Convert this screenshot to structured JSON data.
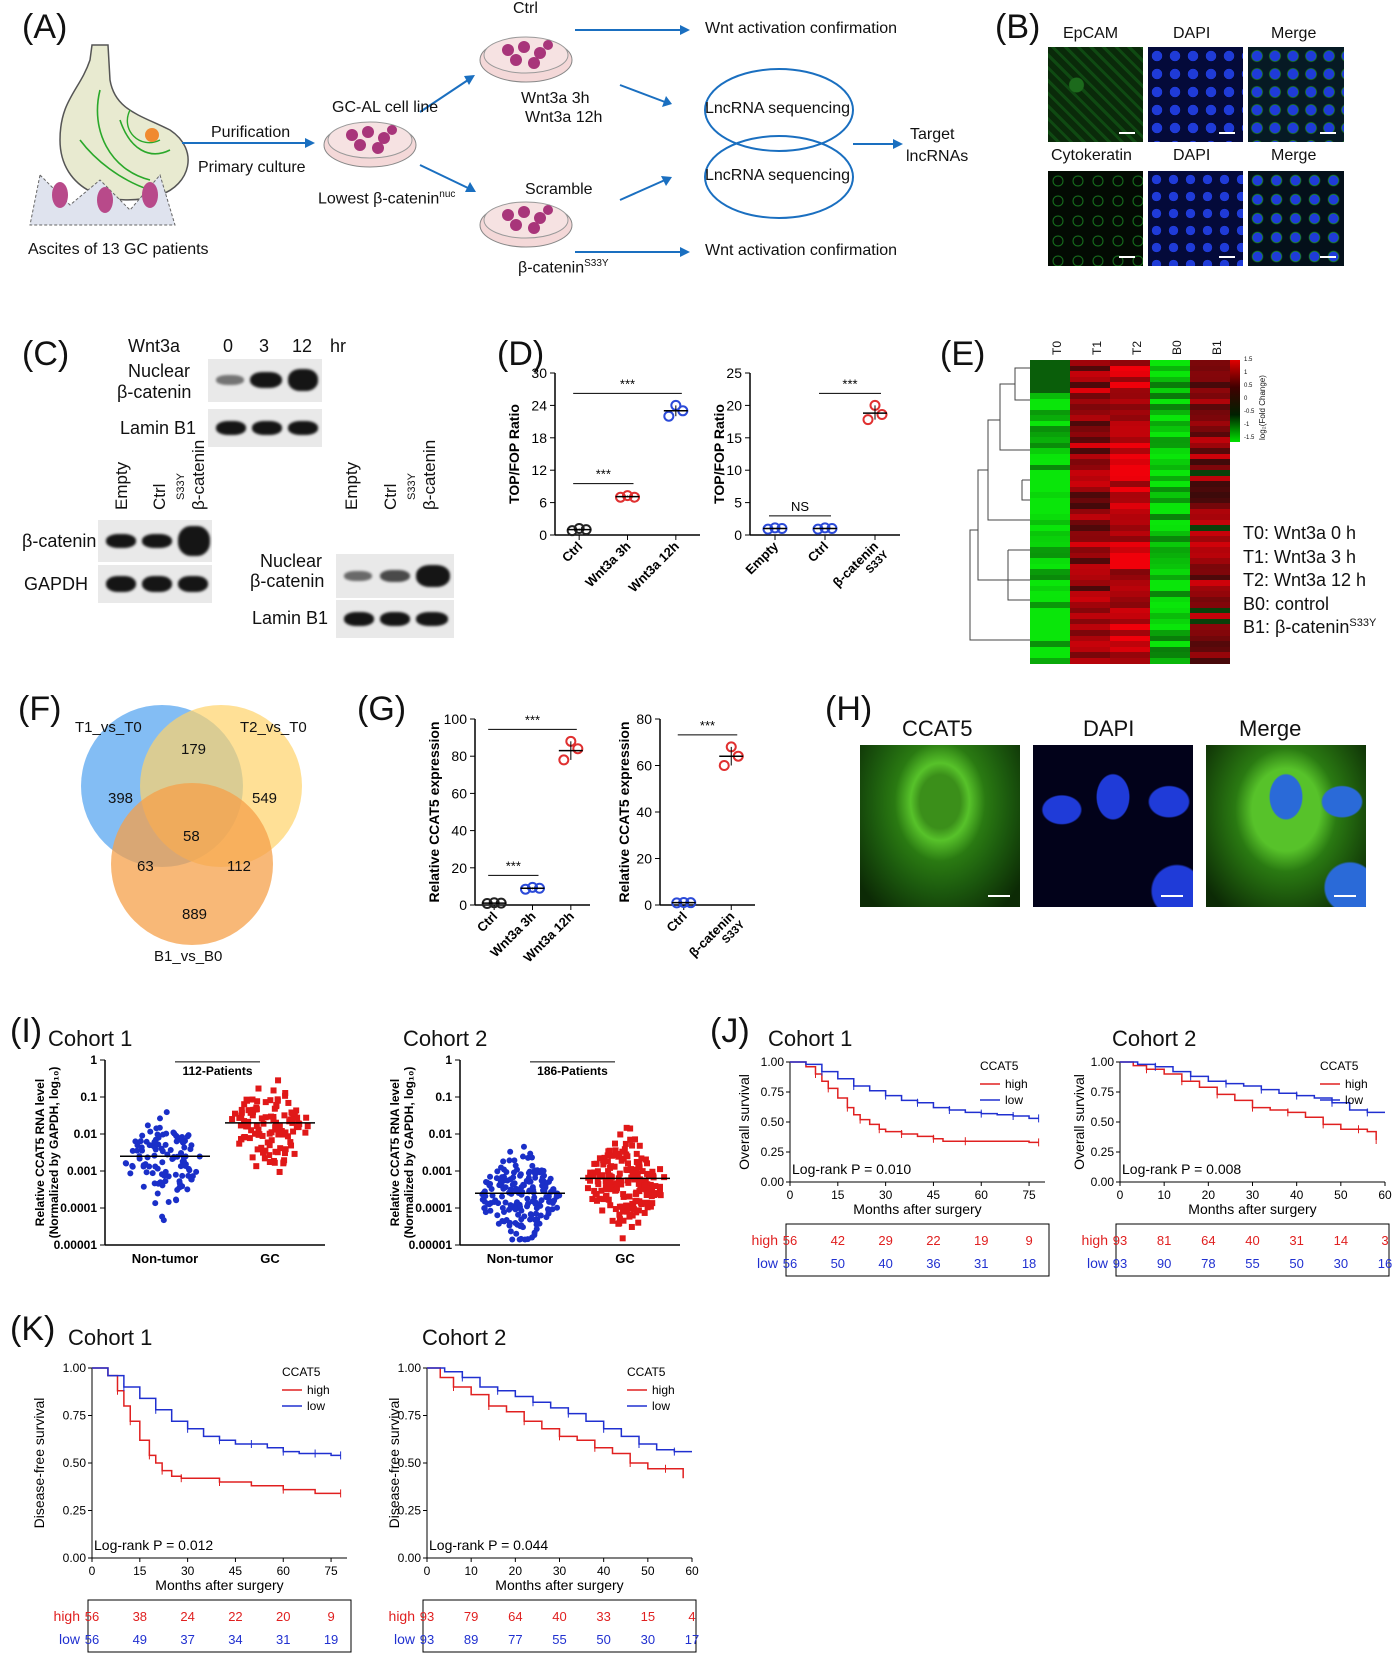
{
  "panels": {
    "A": {
      "label": "(A)",
      "ascites": "Ascites of 13 GC patients",
      "purification": "Purification",
      "primary_culture": "Primary culture",
      "cell_line": "GC-AL cell line",
      "lowest": "Lowest β-catenin",
      "lowest_sup": "nuc",
      "ctrl": "Ctrl",
      "wnt3h": "Wnt3a 3h",
      "wnt12h": "Wnt3a 12h",
      "scramble": "Scramble",
      "bcat_mut": "β-catenin",
      "bcat_mut_sup": "S33Y",
      "wnt_confirm_top": "Wnt activation confirmation",
      "wnt_confirm_bottom": "Wnt activation confirmation",
      "lnc_seq_1": "LncRNA sequencing",
      "lnc_seq_2": "LncRNA sequencing",
      "target_1": "Target",
      "target_2": "lncRNAs"
    },
    "B": {
      "label": "(B)",
      "row1": [
        "EpCAM",
        "DAPI",
        "Merge"
      ],
      "row2": [
        "Cytokeratin",
        "DAPI",
        "Merge"
      ]
    },
    "C": {
      "label": "(C)",
      "wnt3a": "Wnt3a",
      "times": [
        "0",
        "3",
        "12"
      ],
      "hr": "hr",
      "nuclear_bcat_1": "Nuclear",
      "nuclear_bcat_2": "β-catenin",
      "lamin": "Lamin B1",
      "lanes_left": [
        "Empty",
        "Ctrl",
        "β-catenin"
      ],
      "lanes_right": [
        "Empty",
        "Ctrl",
        "β-catenin"
      ],
      "s33y": "S33Y",
      "bcat": "β-catenin",
      "gapdh": "GAPDH",
      "nuclear2_1": "Nuclear",
      "nuclear2_2": "β-catenin",
      "lamin2": "Lamin B1"
    },
    "D": {
      "label": "(D)",
      "ylabel": "TOP/FOP Ratio"
    },
    "E": {
      "label": "(E)",
      "cols": [
        "T0",
        "T1",
        "T2",
        "B0",
        "B1"
      ],
      "scale_label": "log₂(Fold Change)",
      "scale_ticks": [
        "1.5",
        "1",
        "0.5",
        "0",
        "-0.5",
        "-1",
        "-1.5"
      ],
      "legend": [
        "T0: Wnt3a 0 h",
        "T1: Wnt3a 3 h",
        "T2: Wnt3a 12 h",
        "B0: control",
        "B1: β-catenin"
      ],
      "legend_sup": "S33Y",
      "colors": {
        "up": "#d01010",
        "down": "#20c020"
      }
    },
    "F": {
      "label": "(F)",
      "sets": [
        "T1_vs_T0",
        "T2_vs_T0",
        "B1_vs_B0"
      ],
      "regions": {
        "a_only": "398",
        "ab": "179",
        "b_only": "549",
        "abc": "58",
        "ac": "63",
        "bc": "112",
        "c_only": "889"
      },
      "colors": {
        "a": "#5aa7f0",
        "b": "#ffd36a",
        "c": "#f5a04a"
      }
    },
    "G": {
      "label": "(G)",
      "ylabel": "Relative CCAT5 expression"
    },
    "H": {
      "label": "(H)",
      "cols": [
        "CCAT5",
        "DAPI",
        "Merge"
      ]
    },
    "I": {
      "label": "(I)",
      "cohort1": "Cohort 1",
      "cohort2": "Cohort 2",
      "ylabel_1": "Relative CCAT5 RNA level",
      "ylabel_2": "(Normalized by GAPDH, log₁₀)",
      "sig1": "**",
      "sig2": "***",
      "patients1": "112-Patients",
      "patients2": "186-Patients",
      "xcats": [
        "Non-tumor",
        "GC"
      ],
      "yticks": [
        "1",
        "0.1",
        "0.01",
        "0.001",
        "0.0001",
        "0.00001"
      ]
    },
    "J": {
      "label": "(J)",
      "cohort1": "Cohort 1",
      "cohort2": "Cohort 2",
      "ylabel": "Overall survival",
      "xlabel": "Months after surgery",
      "legend_title": "CCAT5",
      "high": "high",
      "low": "low",
      "p1": "Log-rank P = 0.010",
      "p2": "Log-rank P = 0.008",
      "risk1": {
        "high": [
          "56",
          "42",
          "29",
          "22",
          "19",
          "9"
        ],
        "low": [
          "56",
          "50",
          "40",
          "36",
          "31",
          "18"
        ]
      },
      "risk2": {
        "high": [
          "93",
          "81",
          "64",
          "40",
          "31",
          "14",
          "3"
        ],
        "low": [
          "93",
          "90",
          "78",
          "55",
          "50",
          "30",
          "16"
        ]
      }
    },
    "K": {
      "label": "(K)",
      "cohort1": "Cohort 1",
      "cohort2": "Cohort 2",
      "ylabel": "Disease-free survival",
      "xlabel": "Months after surgery",
      "legend_title": "CCAT5",
      "high": "high",
      "low": "low",
      "p1": "Log-rank P = 0.012",
      "p2": "Log-rank P = 0.044",
      "risk1": {
        "high": [
          "56",
          "38",
          "24",
          "22",
          "20",
          "9"
        ],
        "low": [
          "56",
          "49",
          "37",
          "34",
          "31",
          "19"
        ]
      },
      "risk2": {
        "high": [
          "93",
          "79",
          "64",
          "40",
          "33",
          "15",
          "4"
        ],
        "low": [
          "93",
          "89",
          "77",
          "55",
          "50",
          "30",
          "17"
        ]
      }
    }
  },
  "chart_data": [
    {
      "id": "D-left",
      "type": "scatter",
      "ylabel": "TOP/FOP Ratio",
      "categories": [
        "Ctrl",
        "Wnt3a 3h",
        "Wnt3a 12h"
      ],
      "ylim": [
        0,
        30
      ],
      "yticks": [
        0,
        6,
        12,
        18,
        24,
        30
      ],
      "series": [
        {
          "values": [
            1.0,
            7.1,
            23.0
          ],
          "colors": [
            "#222222",
            "#e03030",
            "#2b4ad8"
          ],
          "points": [
            [
              0.8,
              1.2,
              1.0
            ],
            [
              7.0,
              7.3,
              7.0
            ],
            [
              22.0,
              24.0,
              23.0
            ]
          ]
        }
      ],
      "significance": [
        {
          "from": 0,
          "to": 1,
          "label": "***"
        },
        {
          "from": 0,
          "to": 2,
          "label": "***"
        }
      ]
    },
    {
      "id": "D-right",
      "type": "scatter",
      "ylabel": "TOP/FOP Ratio",
      "categories": [
        "Empty",
        "Ctrl",
        "β-catenin S33Y"
      ],
      "ylim": [
        0,
        25
      ],
      "yticks": [
        0,
        5,
        10,
        15,
        20,
        25
      ],
      "series": [
        {
          "values": [
            1.0,
            1.0,
            18.8
          ],
          "colors": [
            "#2b4ad8",
            "#2b4ad8",
            "#e03030"
          ],
          "points": [
            [
              0.9,
              1.1,
              1.0
            ],
            [
              0.9,
              1.1,
              1.0
            ],
            [
              17.8,
              20.0,
              18.6
            ]
          ]
        }
      ],
      "significance": [
        {
          "from": 0,
          "to": 1,
          "label": "NS"
        },
        {
          "from": 1,
          "to": 2,
          "label": "***"
        }
      ]
    },
    {
      "id": "G-left",
      "type": "scatter",
      "ylabel": "Relative CCAT5 expression",
      "categories": [
        "Ctrl",
        "Wnt3a 3h",
        "Wnt3a 12h"
      ],
      "ylim": [
        0,
        100
      ],
      "yticks": [
        0,
        20,
        40,
        60,
        80,
        100
      ],
      "series": [
        {
          "values": [
            1,
            9,
            83
          ],
          "colors": [
            "#222222",
            "#2b4ad8",
            "#e03030"
          ],
          "points": [
            [
              0.8,
              1.2,
              1.0
            ],
            [
              8.5,
              9.5,
              9.0
            ],
            [
              78,
              88,
              84
            ]
          ]
        }
      ],
      "significance": [
        {
          "from": 0,
          "to": 1,
          "label": "***"
        },
        {
          "from": 0,
          "to": 2,
          "label": "***"
        }
      ]
    },
    {
      "id": "G-right",
      "type": "scatter",
      "ylabel": "Relative CCAT5 expression",
      "categories": [
        "Ctrl",
        "β-catenin S33Y"
      ],
      "ylim": [
        0,
        80
      ],
      "yticks": [
        0,
        20,
        40,
        60,
        80
      ],
      "series": [
        {
          "values": [
            1,
            64
          ],
          "colors": [
            "#2b4ad8",
            "#e03030"
          ],
          "points": [
            [
              0.9,
              1.1,
              1.0
            ],
            [
              60,
              68,
              64
            ]
          ]
        }
      ],
      "significance": [
        {
          "from": 0,
          "to": 1,
          "label": "***"
        }
      ]
    },
    {
      "id": "J-cohort1",
      "type": "line",
      "xlabel": "Months after surgery",
      "ylabel": "Overall survival",
      "xlim": [
        0,
        80
      ],
      "xticks": [
        0,
        15,
        30,
        45,
        60,
        75
      ],
      "ylim": [
        0,
        1
      ],
      "yticks": [
        0,
        0.25,
        0.5,
        0.75,
        1
      ],
      "series": [
        {
          "name": "high",
          "color": "#e02020",
          "x": [
            0,
            5,
            8,
            10,
            12,
            15,
            18,
            20,
            22,
            25,
            28,
            30,
            35,
            40,
            45,
            48,
            55,
            75,
            78
          ],
          "y": [
            1,
            0.96,
            0.9,
            0.84,
            0.78,
            0.7,
            0.62,
            0.56,
            0.52,
            0.48,
            0.44,
            0.42,
            0.4,
            0.38,
            0.36,
            0.34,
            0.34,
            0.33,
            0.33
          ]
        },
        {
          "name": "low",
          "color": "#2030d0",
          "x": [
            0,
            5,
            10,
            15,
            20,
            25,
            30,
            35,
            40,
            45,
            50,
            55,
            60,
            65,
            70,
            75,
            78
          ],
          "y": [
            1,
            0.98,
            0.92,
            0.86,
            0.8,
            0.76,
            0.72,
            0.68,
            0.66,
            0.62,
            0.6,
            0.58,
            0.57,
            0.56,
            0.55,
            0.53,
            0.53
          ]
        }
      ]
    },
    {
      "id": "J-cohort2",
      "type": "line",
      "xlabel": "Months after surgery",
      "ylabel": "Overall survival",
      "xlim": [
        0,
        60
      ],
      "xticks": [
        0,
        10,
        20,
        30,
        40,
        50,
        60
      ],
      "ylim": [
        0,
        1
      ],
      "yticks": [
        0,
        0.25,
        0.5,
        0.75,
        1
      ],
      "series": [
        {
          "name": "high",
          "color": "#e02020",
          "x": [
            0,
            3,
            6,
            10,
            14,
            18,
            22,
            26,
            30,
            34,
            38,
            42,
            46,
            50,
            54,
            56,
            58
          ],
          "y": [
            1,
            0.97,
            0.94,
            0.9,
            0.84,
            0.79,
            0.73,
            0.68,
            0.62,
            0.6,
            0.58,
            0.54,
            0.48,
            0.44,
            0.44,
            0.42,
            0.35
          ]
        },
        {
          "name": "low",
          "color": "#2030d0",
          "x": [
            0,
            4,
            8,
            12,
            16,
            20,
            24,
            28,
            32,
            36,
            40,
            44,
            48,
            52,
            56,
            60
          ],
          "y": [
            1,
            0.98,
            0.96,
            0.92,
            0.88,
            0.84,
            0.82,
            0.8,
            0.77,
            0.74,
            0.72,
            0.7,
            0.66,
            0.6,
            0.58,
            0.58
          ]
        }
      ]
    },
    {
      "id": "K-cohort1",
      "type": "line",
      "xlabel": "Months after surgery",
      "ylabel": "Disease-free survival",
      "xlim": [
        0,
        80
      ],
      "xticks": [
        0,
        15,
        30,
        45,
        60,
        75
      ],
      "ylim": [
        0,
        1
      ],
      "yticks": [
        0,
        0.25,
        0.5,
        0.75,
        1
      ],
      "series": [
        {
          "name": "high",
          "color": "#e02020",
          "x": [
            0,
            5,
            8,
            10,
            12,
            15,
            18,
            20,
            22,
            25,
            28,
            30,
            40,
            50,
            60,
            70,
            78
          ],
          "y": [
            1,
            0.96,
            0.88,
            0.8,
            0.72,
            0.62,
            0.54,
            0.5,
            0.46,
            0.43,
            0.42,
            0.42,
            0.4,
            0.38,
            0.36,
            0.34,
            0.34
          ]
        },
        {
          "name": "low",
          "color": "#2030d0",
          "x": [
            0,
            5,
            10,
            15,
            20,
            25,
            30,
            35,
            40,
            45,
            50,
            55,
            60,
            65,
            70,
            75,
            78
          ],
          "y": [
            1,
            0.96,
            0.9,
            0.84,
            0.78,
            0.72,
            0.68,
            0.64,
            0.62,
            0.6,
            0.6,
            0.58,
            0.56,
            0.55,
            0.55,
            0.54,
            0.54
          ]
        }
      ]
    },
    {
      "id": "K-cohort2",
      "type": "line",
      "xlabel": "Months after surgery",
      "ylabel": "Disease-free survival",
      "xlim": [
        0,
        60
      ],
      "xticks": [
        0,
        10,
        20,
        30,
        40,
        50,
        60
      ],
      "ylim": [
        0,
        1
      ],
      "yticks": [
        0,
        0.25,
        0.5,
        0.75,
        1
      ],
      "series": [
        {
          "name": "high",
          "color": "#e02020",
          "x": [
            0,
            3,
            6,
            10,
            14,
            18,
            22,
            26,
            30,
            34,
            38,
            42,
            46,
            50,
            54,
            58
          ],
          "y": [
            1,
            0.95,
            0.9,
            0.86,
            0.8,
            0.77,
            0.72,
            0.68,
            0.64,
            0.62,
            0.58,
            0.55,
            0.5,
            0.47,
            0.47,
            0.42
          ]
        },
        {
          "name": "low",
          "color": "#2030d0",
          "x": [
            0,
            4,
            8,
            12,
            16,
            20,
            24,
            28,
            32,
            36,
            40,
            44,
            48,
            52,
            56,
            60
          ],
          "y": [
            1,
            0.98,
            0.95,
            0.9,
            0.88,
            0.85,
            0.82,
            0.79,
            0.76,
            0.72,
            0.68,
            0.64,
            0.6,
            0.57,
            0.56,
            0.56
          ]
        }
      ]
    }
  ]
}
